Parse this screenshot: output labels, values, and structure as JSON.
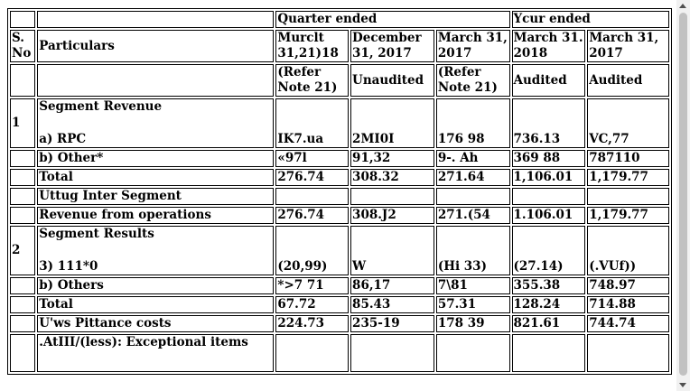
{
  "header": {
    "quarter_ended": "Quarter ended",
    "year_ended": "Ycur ended",
    "sno": "S. No",
    "particulars": "Particulars",
    "dates": [
      "Murclt 31,21)18",
      "December 31, 2017",
      "March 31, 2017",
      "March 31. 2018",
      "March 31, 2017"
    ],
    "status": [
      "(Refer Note 21)",
      "Unaudited",
      "(Refer Note 21)",
      "Audited",
      "Audited"
    ]
  },
  "rows": {
    "seg_rev_no": "1",
    "seg_rev_title": "Segment Revenue",
    "rpc": {
      "label": "a) RPC",
      "values": [
        "IK7.ua",
        "2MI0I",
        "176 98",
        "736.13",
        "VC,77"
      ]
    },
    "other": {
      "label": "b) Other*",
      "values": [
        "«97l",
        "91,32",
        "9-. Ah",
        "369 88",
        "787110"
      ]
    },
    "total1": {
      "label": "Total",
      "values": [
        "276.74",
        "308.32",
        "271.64",
        "1,106.01",
        "1,179.77"
      ]
    },
    "inter": {
      "label": "Uttug Inter Segment"
    },
    "revops": {
      "label": "Revenue from operations",
      "values": [
        "276.74",
        "308.J2",
        "271.(54",
        "1.106.01",
        "1,179.77"
      ]
    },
    "seg_res_no": "2",
    "seg_res_title": "Segment Results",
    "r111": {
      "label": "3) 111*0",
      "values": [
        "(20,99)",
        "W",
        "(Hi 33)",
        "(27.14)",
        "(.VUf))"
      ]
    },
    "others": {
      "label": "b) Others",
      "values": [
        "*>7 71",
        "86,17",
        "7\\81",
        "355.38",
        "748.97"
      ]
    },
    "total2": {
      "label": "Total",
      "values": [
        "67.72",
        "85.43",
        "57.31",
        "128.24",
        "714.88"
      ]
    },
    "finance": {
      "label": "U'ws Pittance costs",
      "values": [
        "224.73",
        "235-19",
        "178 39",
        "821.61",
        "744.74"
      ]
    },
    "exceptional": {
      "label": ".AtIII/(less): Exceptional items"
    }
  }
}
